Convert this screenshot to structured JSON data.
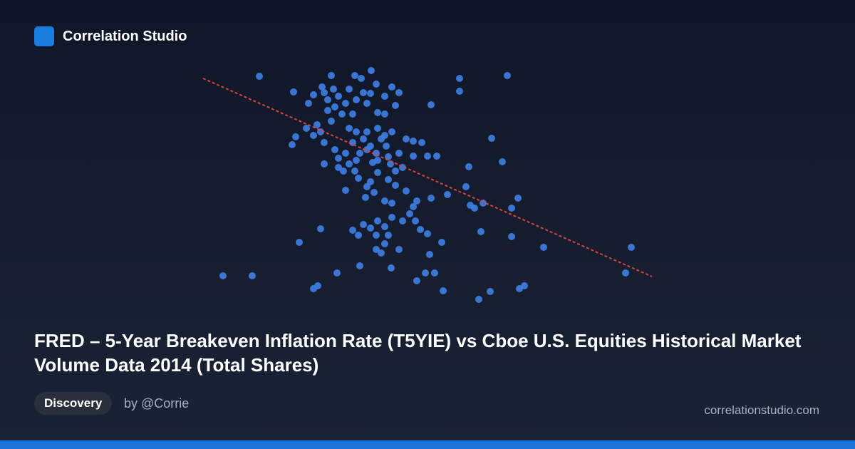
{
  "brand": "Correlation Studio",
  "title": "FRED – 5-Year Breakeven Inflation Rate (T5YIE) vs Cboe U.S. Equities Historical Market Volume Data 2014 (Total Shares)",
  "tag": "Discovery",
  "author": "by @Corrie",
  "site": "correlationstudio.com",
  "chart_data": {
    "type": "scatter",
    "color": "#3f7fe6",
    "xlim": [
      0,
      630
    ],
    "ylim": [
      0,
      330
    ],
    "x": [
      79,
      127,
      180,
      213,
      236,
      222,
      235,
      167,
      155,
      148,
      175,
      190,
      200,
      185,
      205,
      215,
      225,
      243,
      255,
      265,
      275,
      270,
      255,
      245,
      230,
      210,
      195,
      180,
      165,
      160,
      145,
      130,
      125,
      155,
      170,
      185,
      190,
      200,
      210,
      215,
      225,
      235,
      245,
      255,
      265,
      275,
      260,
      245,
      230,
      215,
      205,
      190,
      170,
      285,
      295,
      307,
      315,
      328,
      295,
      280,
      263,
      245,
      235,
      230,
      260,
      270,
      285,
      300,
      295,
      290,
      298,
      305,
      315,
      320,
      343,
      369,
      375,
      381,
      393,
      373,
      405,
      420,
      442,
      433,
      360,
      360,
      427,
      320,
      200,
      228,
      240,
      255,
      265,
      245,
      235,
      225,
      210,
      218,
      243,
      255,
      260,
      165,
      135,
      243,
      250,
      255,
      275,
      318,
      335,
      390,
      433,
      478,
      601,
      593,
      28,
      69,
      188,
      220,
      264,
      300,
      312,
      325,
      337,
      387,
      403,
      444,
      451,
      155,
      161,
      265,
      280,
      218,
      243,
      205,
      175,
      183,
      170,
      230,
      250,
      220,
      197,
      238,
      270,
      257,
      213
    ],
    "y": [
      318,
      296,
      319,
      319,
      326,
      315,
      294,
      303,
      292,
      280,
      285,
      290,
      280,
      275,
      300,
      285,
      295,
      307,
      290,
      303,
      295,
      277,
      265,
      267,
      280,
      265,
      265,
      255,
      240,
      250,
      245,
      233,
      222,
      235,
      225,
      215,
      203,
      210,
      225,
      240,
      230,
      220,
      245,
      235,
      240,
      210,
      205,
      200,
      215,
      200,
      195,
      190,
      195,
      230,
      227,
      225,
      206,
      206,
      206,
      190,
      195,
      183,
      170,
      163,
      173,
      165,
      157,
      143,
      135,
      125,
      115,
      103,
      97,
      147,
      152,
      163,
      137,
      133,
      140,
      191,
      231,
      198,
      147,
      133,
      315,
      297,
      319,
      278,
      158,
      148,
      155,
      143,
      120,
      115,
      105,
      110,
      102,
      95,
      95,
      107,
      95,
      104,
      85,
      75,
      70,
      83,
      75,
      68,
      85,
      100,
      93,
      78,
      78,
      42,
      38,
      38,
      42,
      52,
      49,
      31,
      42,
      42,
      17,
      5,
      16,
      20,
      24,
      20,
      24,
      140,
      115,
      175,
      210,
      245,
      270,
      300,
      295,
      240,
      230,
      210,
      185,
      197,
      185,
      220,
      185
    ],
    "trendline": {
      "color": "#d9443f",
      "x": [
        0,
        630
      ],
      "y": [
        315,
        37
      ]
    }
  }
}
